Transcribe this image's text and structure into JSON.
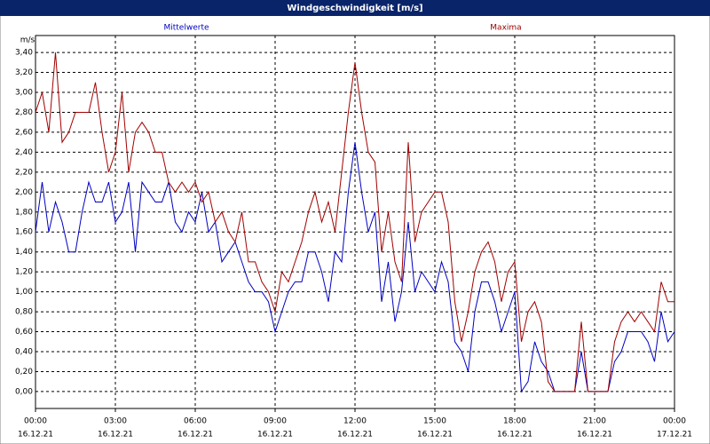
{
  "window_title": "Windgeschwindigkeit [m/s]",
  "chart_data": {
    "type": "line",
    "ylabel": "m/s",
    "x": [
      0,
      15,
      30,
      45,
      60,
      75,
      90,
      105,
      120,
      135,
      150,
      165,
      180,
      195,
      210,
      225,
      240,
      255,
      270,
      285,
      300,
      315,
      330,
      345,
      360,
      375,
      390,
      405,
      420,
      435,
      450,
      465,
      480,
      495,
      510,
      525,
      540,
      555,
      570,
      585,
      600,
      615,
      630,
      645,
      660,
      675,
      690,
      705,
      720,
      735,
      750,
      765,
      780,
      795,
      810,
      825,
      840,
      855,
      870,
      885,
      900,
      915,
      930,
      945,
      960,
      975,
      990,
      1005,
      1020,
      1035,
      1050,
      1065,
      1080,
      1095,
      1110,
      1125,
      1140,
      1155,
      1170,
      1185,
      1200,
      1215,
      1230,
      1245,
      1260,
      1275,
      1290,
      1305,
      1320,
      1335,
      1350,
      1365,
      1380,
      1395,
      1410,
      1425,
      1440
    ],
    "series": [
      {
        "name": "Mittelwerte",
        "color": "#0000c0",
        "values": [
          1.6,
          2.1,
          1.6,
          1.9,
          1.7,
          1.4,
          1.4,
          1.8,
          2.1,
          1.9,
          1.9,
          2.1,
          1.7,
          1.8,
          2.1,
          1.4,
          2.1,
          2.0,
          1.9,
          1.9,
          2.1,
          1.7,
          1.6,
          1.8,
          1.7,
          2.0,
          1.6,
          1.7,
          1.3,
          1.4,
          1.5,
          1.3,
          1.1,
          1.0,
          1.0,
          0.9,
          0.6,
          0.8,
          1.0,
          1.1,
          1.1,
          1.4,
          1.4,
          1.2,
          0.9,
          1.4,
          1.3,
          2.0,
          2.5,
          2.0,
          1.6,
          1.8,
          0.9,
          1.3,
          0.7,
          1.0,
          1.7,
          1.0,
          1.2,
          1.1,
          1.0,
          1.3,
          1.1,
          0.5,
          0.4,
          0.2,
          0.8,
          1.1,
          1.1,
          0.9,
          0.6,
          0.8,
          1.0,
          0.0,
          0.1,
          0.5,
          0.3,
          0.2,
          0,
          0,
          0,
          0,
          0.4,
          0,
          0,
          0,
          0,
          0.3,
          0.4,
          0.6,
          0.6,
          0.6,
          0.5,
          0.3,
          0.8,
          0.5,
          0.6
        ]
      },
      {
        "name": "Maxima",
        "color": "#a00000",
        "values": [
          2.8,
          3.0,
          2.6,
          3.4,
          2.5,
          2.6,
          2.8,
          2.8,
          2.8,
          3.1,
          2.6,
          2.2,
          2.4,
          3.0,
          2.2,
          2.6,
          2.7,
          2.6,
          2.4,
          2.4,
          2.1,
          2.0,
          2.1,
          2.0,
          2.1,
          1.9,
          2.0,
          1.7,
          1.8,
          1.6,
          1.5,
          1.8,
          1.3,
          1.3,
          1.1,
          1.0,
          0.8,
          1.2,
          1.1,
          1.3,
          1.5,
          1.8,
          2.0,
          1.7,
          1.9,
          1.6,
          2.2,
          2.8,
          3.3,
          2.8,
          2.4,
          2.3,
          1.4,
          1.8,
          1.3,
          1.1,
          2.5,
          1.5,
          1.8,
          1.9,
          2.0,
          2.0,
          1.7,
          0.9,
          0.5,
          0.8,
          1.2,
          1.4,
          1.5,
          1.3,
          0.9,
          1.2,
          1.3,
          0.5,
          0.8,
          0.9,
          0.7,
          0.1,
          0,
          0,
          0,
          0,
          0.7,
          0,
          0,
          0,
          0,
          0.5,
          0.7,
          0.8,
          0.7,
          0.8,
          0.7,
          0.6,
          1.1,
          0.9,
          0.9
        ]
      }
    ],
    "xlim": [
      0,
      1440
    ],
    "xticks": [
      {
        "value": 0,
        "label": "00:00",
        "date": "16.12.21"
      },
      {
        "value": 180,
        "label": "03:00",
        "date": "16.12.21"
      },
      {
        "value": 360,
        "label": "06:00",
        "date": "16.12.21"
      },
      {
        "value": 540,
        "label": "09:00",
        "date": "16.12.21"
      },
      {
        "value": 720,
        "label": "12:00",
        "date": "16.12.21"
      },
      {
        "value": 900,
        "label": "15:00",
        "date": "16.12.21"
      },
      {
        "value": 1080,
        "label": "18:00",
        "date": "16.12.21"
      },
      {
        "value": 1260,
        "label": "21:00",
        "date": "16.12.21"
      },
      {
        "value": 1440,
        "label": "00:00",
        "date": "17.12.21"
      }
    ],
    "ylim": [
      -0.17,
      3.57
    ],
    "yticks": [
      {
        "value": 0,
        "label": "0,00"
      },
      {
        "value": 0.2,
        "label": "0,20"
      },
      {
        "value": 0.4,
        "label": "0,40"
      },
      {
        "value": 0.6,
        "label": "0,60"
      },
      {
        "value": 0.8,
        "label": "0,80"
      },
      {
        "value": 1.0,
        "label": "1,00"
      },
      {
        "value": 1.2,
        "label": "1,20"
      },
      {
        "value": 1.4,
        "label": "1,40"
      },
      {
        "value": 1.6,
        "label": "1,60"
      },
      {
        "value": 1.8,
        "label": "1,80"
      },
      {
        "value": 2.0,
        "label": "2,00"
      },
      {
        "value": 2.2,
        "label": "2,20"
      },
      {
        "value": 2.4,
        "label": "2,40"
      },
      {
        "value": 2.6,
        "label": "2,60"
      },
      {
        "value": 2.8,
        "label": "2,80"
      },
      {
        "value": 3.0,
        "label": "3,00"
      },
      {
        "value": 3.2,
        "label": "3,20"
      },
      {
        "value": 3.4,
        "label": "3,40"
      }
    ],
    "grid": true
  }
}
